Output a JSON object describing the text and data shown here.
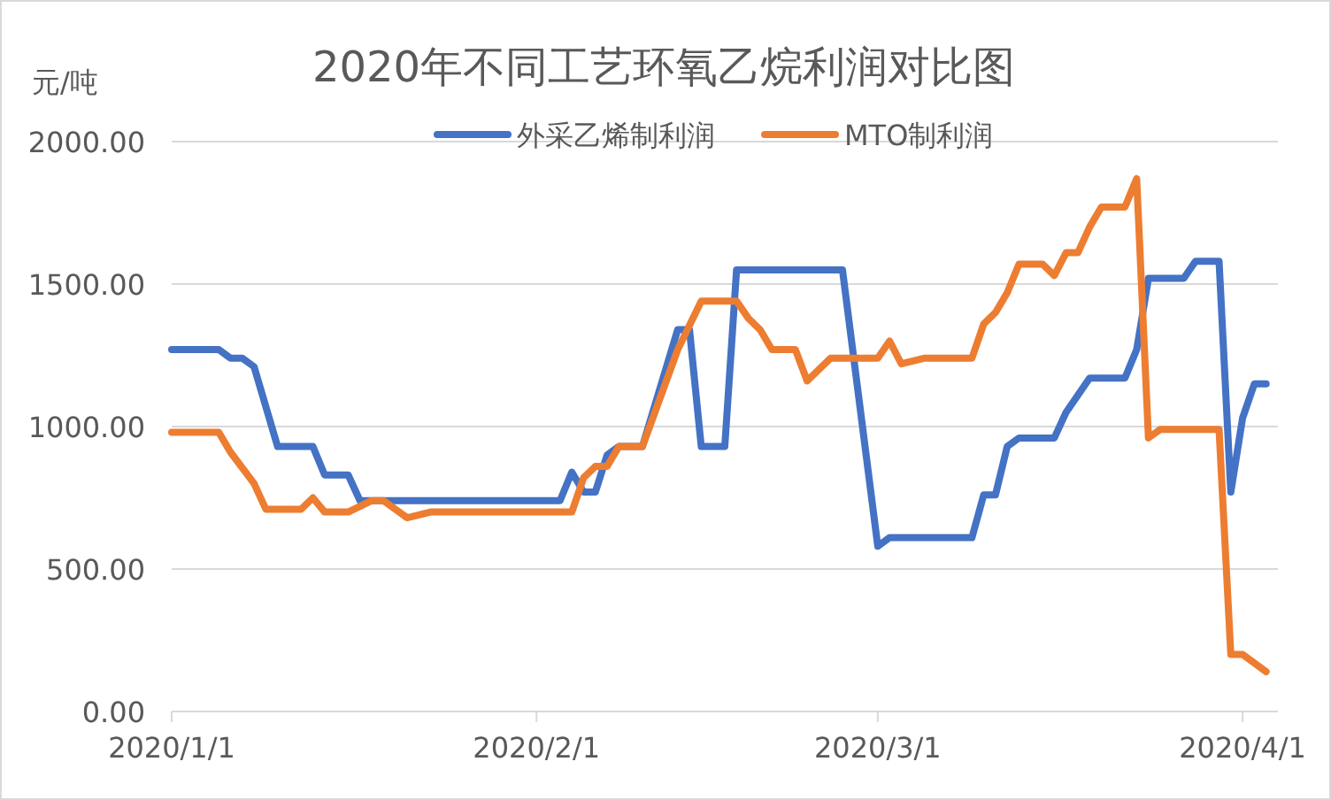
{
  "chart_data": {
    "type": "line",
    "title": "2020年不同工艺环氧乙烷利润对比图",
    "ylabel": "元/吨",
    "xlim": [
      "2020-01-01",
      "2020-04-04"
    ],
    "ylim": [
      0,
      2000
    ],
    "xticks": [
      {
        "value": "2020-01-01",
        "label": "2020/1/1"
      },
      {
        "value": "2020-02-01",
        "label": "2020/2/1"
      },
      {
        "value": "2020-03-01",
        "label": "2020/3/1"
      },
      {
        "value": "2020-04-01",
        "label": "2020/4/1"
      }
    ],
    "yticks": [
      {
        "value": 0,
        "label": "0.00"
      },
      {
        "value": 500,
        "label": "500.00"
      },
      {
        "value": 1000,
        "label": "1000.00"
      },
      {
        "value": 1500,
        "label": "1500.00"
      },
      {
        "value": 2000,
        "label": "2000.00"
      }
    ],
    "grid": "y",
    "legend": "top",
    "marker": "none",
    "line_style": "solid",
    "series": [
      {
        "name": "外采乙烯制利润",
        "color": "#4472c4",
        "x": [
          "2020-01-01",
          "2020-01-05",
          "2020-01-06",
          "2020-01-07",
          "2020-01-08",
          "2020-01-10",
          "2020-01-13",
          "2020-01-14",
          "2020-01-16",
          "2020-01-17",
          "2020-02-03",
          "2020-02-04",
          "2020-02-05",
          "2020-02-06",
          "2020-02-07",
          "2020-02-08",
          "2020-02-10",
          "2020-02-13",
          "2020-02-14",
          "2020-02-15",
          "2020-02-17",
          "2020-02-18",
          "2020-02-27",
          "2020-03-01",
          "2020-03-02",
          "2020-03-09",
          "2020-03-10",
          "2020-03-11",
          "2020-03-12",
          "2020-03-13",
          "2020-03-16",
          "2020-03-17",
          "2020-03-19",
          "2020-03-22",
          "2020-03-23",
          "2020-03-24",
          "2020-03-27",
          "2020-03-28",
          "2020-03-30",
          "2020-03-31",
          "2020-04-01",
          "2020-04-02",
          "2020-04-03"
        ],
        "values": [
          1270,
          1270,
          1240,
          1240,
          1210,
          930,
          930,
          830,
          830,
          740,
          740,
          840,
          770,
          770,
          900,
          930,
          930,
          1340,
          1340,
          930,
          930,
          1550,
          1550,
          580,
          610,
          610,
          760,
          760,
          930,
          960,
          960,
          1050,
          1170,
          1170,
          1270,
          1520,
          1520,
          1580,
          1580,
          770,
          1030,
          1150,
          1150
        ]
      },
      {
        "name": "MTO制利润",
        "color": "#ed7d31",
        "x": [
          "2020-01-01",
          "2020-01-05",
          "2020-01-06",
          "2020-01-08",
          "2020-01-09",
          "2020-01-12",
          "2020-01-13",
          "2020-01-14",
          "2020-01-16",
          "2020-01-18",
          "2020-01-19",
          "2020-01-21",
          "2020-01-23",
          "2020-02-04",
          "2020-02-05",
          "2020-02-06",
          "2020-02-07",
          "2020-02-08",
          "2020-02-10",
          "2020-02-13",
          "2020-02-15",
          "2020-02-18",
          "2020-02-19",
          "2020-02-20",
          "2020-02-21",
          "2020-02-23",
          "2020-02-24",
          "2020-02-26",
          "2020-03-01",
          "2020-03-02",
          "2020-03-03",
          "2020-03-05",
          "2020-03-08",
          "2020-03-09",
          "2020-03-10",
          "2020-03-11",
          "2020-03-12",
          "2020-03-13",
          "2020-03-15",
          "2020-03-16",
          "2020-03-17",
          "2020-03-18",
          "2020-03-19",
          "2020-03-20",
          "2020-03-22",
          "2020-03-23",
          "2020-03-24",
          "2020-03-25",
          "2020-03-30",
          "2020-03-31",
          "2020-04-01",
          "2020-04-03"
        ],
        "values": [
          980,
          980,
          910,
          800,
          710,
          710,
          750,
          700,
          700,
          740,
          740,
          680,
          700,
          700,
          820,
          860,
          860,
          930,
          930,
          1270,
          1440,
          1440,
          1380,
          1340,
          1270,
          1270,
          1160,
          1240,
          1240,
          1300,
          1220,
          1240,
          1240,
          1240,
          1360,
          1400,
          1470,
          1570,
          1570,
          1530,
          1610,
          1610,
          1700,
          1770,
          1770,
          1870,
          960,
          990,
          990,
          200,
          200,
          140
        ]
      }
    ]
  }
}
